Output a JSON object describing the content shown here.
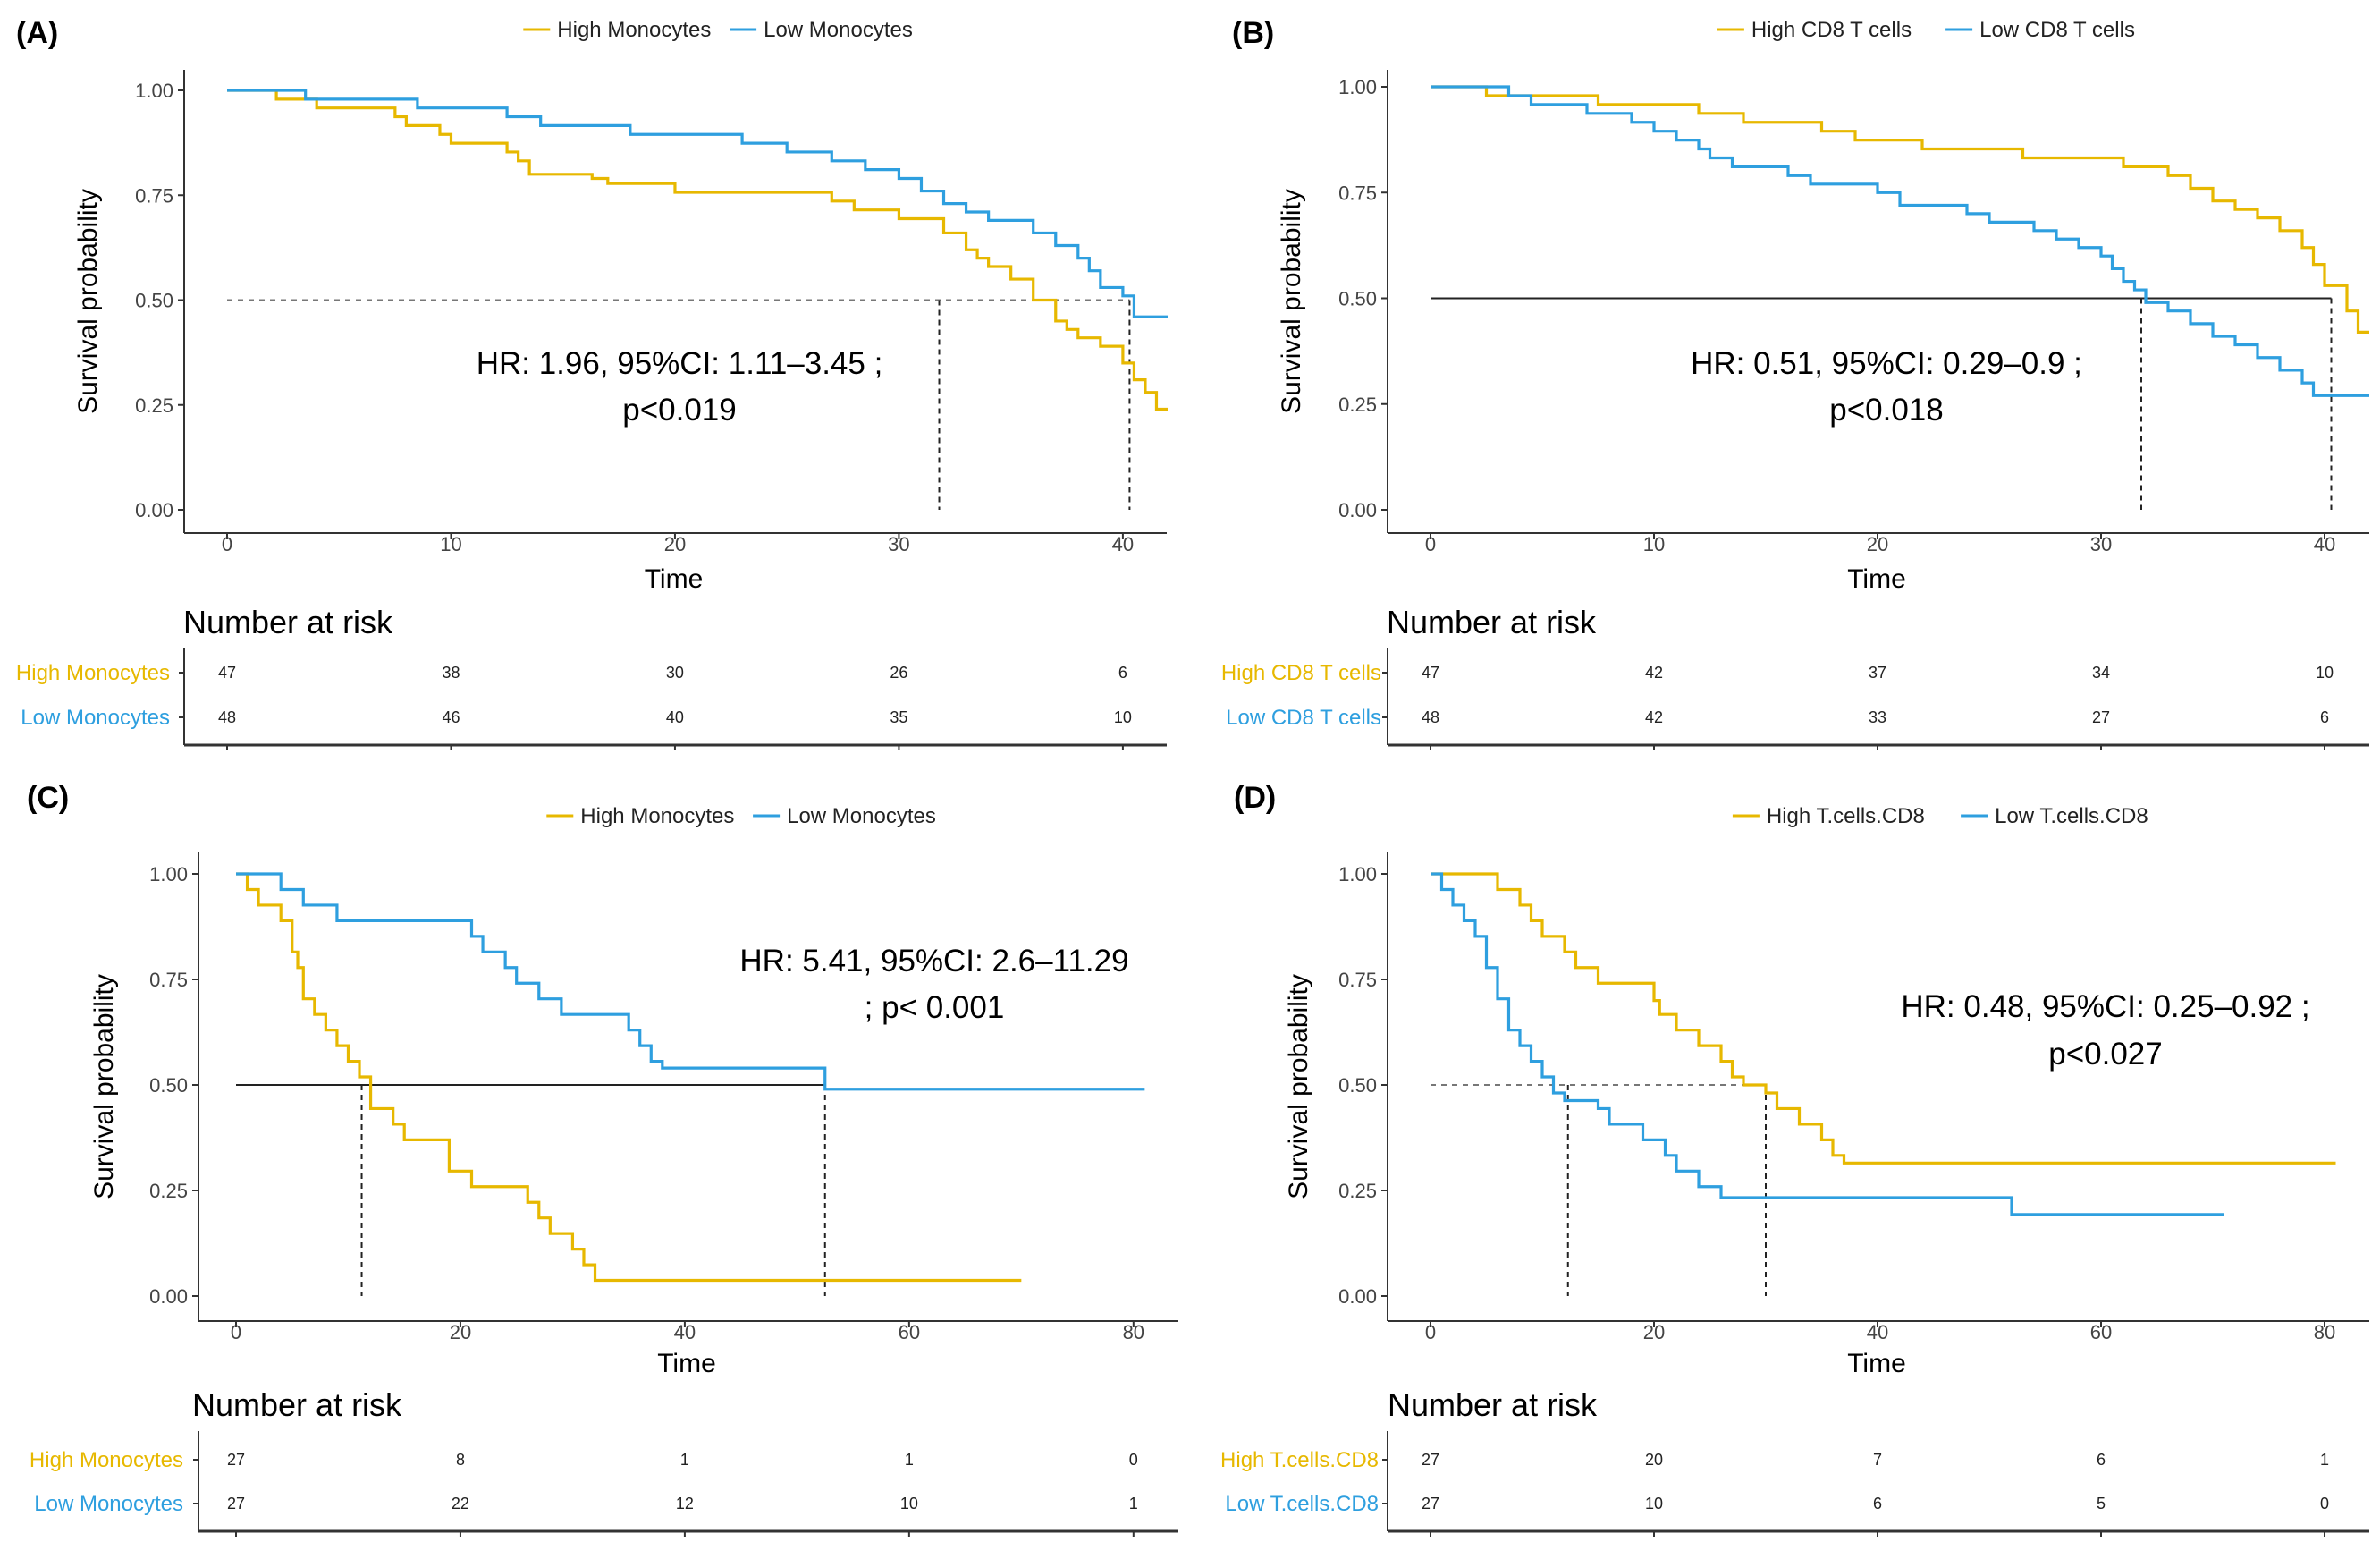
{
  "colors": {
    "high": "#E7B800",
    "low": "#2E9FDF",
    "axis": "#333333",
    "text": "#000000"
  },
  "chart_data": [
    {
      "type": "line",
      "panel": "(A)",
      "xlabel": "Time",
      "ylabel": "Survival probability",
      "xlim": [
        0,
        42
      ],
      "ylim": [
        0,
        1
      ],
      "x_ticks": [
        0,
        10,
        20,
        30,
        40
      ],
      "x_tick_labels": [
        "0",
        "10",
        "20",
        "30",
        "40"
      ],
      "y_ticks": [
        0,
        0.25,
        0.5,
        0.75,
        1
      ],
      "y_tick_labels": [
        "0.00",
        "0.25",
        "0.50",
        "0.75",
        "1.00"
      ],
      "legend": "top-center",
      "median_line_style": "dashed",
      "median_times": [
        31.8,
        40.3
      ],
      "hr_text": [
        "HR: 1.96, 95%CI: 1.11–3.45 ;",
        "p<0.019"
      ],
      "series": [
        {
          "name": "High Monocytes",
          "color": "#E7B800",
          "steps": [
            [
              0,
              1
            ],
            [
              2.2,
              0.979
            ],
            [
              4,
              0.958
            ],
            [
              7.5,
              0.937
            ],
            [
              8,
              0.916
            ],
            [
              9.5,
              0.895
            ],
            [
              10,
              0.874
            ],
            [
              12.5,
              0.853
            ],
            [
              13,
              0.832
            ],
            [
              13.5,
              0.8
            ],
            [
              16.3,
              0.79
            ],
            [
              17,
              0.778
            ],
            [
              20,
              0.757
            ],
            [
              27,
              0.736
            ],
            [
              28,
              0.715
            ],
            [
              30,
              0.694
            ],
            [
              32,
              0.66
            ],
            [
              33,
              0.62
            ],
            [
              33.5,
              0.6
            ],
            [
              34,
              0.58
            ],
            [
              35,
              0.55
            ],
            [
              36,
              0.5
            ],
            [
              37,
              0.45
            ],
            [
              37.5,
              0.43
            ],
            [
              38,
              0.41
            ],
            [
              39,
              0.39
            ],
            [
              40,
              0.35
            ],
            [
              40.5,
              0.31
            ],
            [
              41,
              0.28
            ],
            [
              41.5,
              0.24
            ]
          ],
          "end": 42
        },
        {
          "name": "Low Monocytes",
          "color": "#2E9FDF",
          "steps": [
            [
              0,
              1
            ],
            [
              3.5,
              0.979
            ],
            [
              8.5,
              0.958
            ],
            [
              12.5,
              0.937
            ],
            [
              14,
              0.916
            ],
            [
              18,
              0.895
            ],
            [
              23,
              0.874
            ],
            [
              25,
              0.853
            ],
            [
              27,
              0.832
            ],
            [
              28.5,
              0.811
            ],
            [
              30,
              0.79
            ],
            [
              31,
              0.76
            ],
            [
              32,
              0.73
            ],
            [
              33,
              0.71
            ],
            [
              34,
              0.69
            ],
            [
              36,
              0.66
            ],
            [
              37,
              0.63
            ],
            [
              38,
              0.6
            ],
            [
              38.5,
              0.57
            ],
            [
              39,
              0.53
            ],
            [
              40,
              0.51
            ],
            [
              40.5,
              0.46
            ]
          ],
          "end": 42
        }
      ],
      "risk_table": {
        "title": "Number at risk",
        "times": [
          0,
          10,
          20,
          30,
          40
        ],
        "rows": [
          {
            "label": "High Monocytes",
            "color": "#E7B800",
            "values": [
              "47",
              "38",
              "30",
              "26",
              "6"
            ]
          },
          {
            "label": "Low Monocytes",
            "color": "#2E9FDF",
            "values": [
              "48",
              "46",
              "40",
              "35",
              "10"
            ]
          }
        ]
      }
    },
    {
      "type": "line",
      "panel": "(B)",
      "xlabel": "Time",
      "ylabel": "Survival probability",
      "xlim": [
        0,
        42
      ],
      "ylim": [
        0,
        1
      ],
      "x_ticks": [
        0,
        10,
        20,
        30,
        40
      ],
      "x_tick_labels": [
        "0",
        "10",
        "20",
        "30",
        "40"
      ],
      "y_ticks": [
        0,
        0.25,
        0.5,
        0.75,
        1
      ],
      "y_tick_labels": [
        "0.00",
        "0.25",
        "0.50",
        "0.75",
        "1.00"
      ],
      "legend": "top-center",
      "median_line_style": "solid",
      "median_times": [
        31.8,
        40.3
      ],
      "hr_text": [
        "HR: 0.51, 95%CI: 0.29–0.9 ;",
        "p<0.018"
      ],
      "series": [
        {
          "name": "High CD8 T cells",
          "color": "#E7B800",
          "steps": [
            [
              0,
              1
            ],
            [
              2.5,
              0.979
            ],
            [
              7.5,
              0.958
            ],
            [
              12,
              0.937
            ],
            [
              14,
              0.916
            ],
            [
              17.5,
              0.895
            ],
            [
              19,
              0.874
            ],
            [
              22,
              0.853
            ],
            [
              26.5,
              0.832
            ],
            [
              31,
              0.811
            ],
            [
              33,
              0.79
            ],
            [
              34,
              0.76
            ],
            [
              35,
              0.73
            ],
            [
              36,
              0.71
            ],
            [
              37,
              0.69
            ],
            [
              38,
              0.66
            ],
            [
              39,
              0.62
            ],
            [
              39.5,
              0.58
            ],
            [
              40,
              0.53
            ],
            [
              41,
              0.47
            ],
            [
              41.5,
              0.42
            ]
          ],
          "end": 42
        },
        {
          "name": "Low CD8 T cells",
          "color": "#2E9FDF",
          "steps": [
            [
              0,
              1
            ],
            [
              3.5,
              0.979
            ],
            [
              4.5,
              0.958
            ],
            [
              7,
              0.937
            ],
            [
              9,
              0.916
            ],
            [
              10,
              0.895
            ],
            [
              11,
              0.874
            ],
            [
              12,
              0.853
            ],
            [
              12.5,
              0.832
            ],
            [
              13.5,
              0.811
            ],
            [
              16,
              0.79
            ],
            [
              17,
              0.77
            ],
            [
              20,
              0.75
            ],
            [
              21,
              0.72
            ],
            [
              24,
              0.7
            ],
            [
              25,
              0.68
            ],
            [
              27,
              0.66
            ],
            [
              28,
              0.64
            ],
            [
              29,
              0.62
            ],
            [
              30,
              0.6
            ],
            [
              30.5,
              0.57
            ],
            [
              31,
              0.54
            ],
            [
              31.5,
              0.52
            ],
            [
              32,
              0.49
            ],
            [
              33,
              0.47
            ],
            [
              34,
              0.44
            ],
            [
              35,
              0.41
            ],
            [
              36,
              0.39
            ],
            [
              37,
              0.36
            ],
            [
              38,
              0.33
            ],
            [
              39,
              0.3
            ],
            [
              39.5,
              0.27
            ]
          ],
          "end": 42
        }
      ],
      "risk_table": {
        "title": "Number at risk",
        "times": [
          0,
          10,
          20,
          30,
          40
        ],
        "rows": [
          {
            "label": "High CD8 T cells",
            "color": "#E7B800",
            "values": [
              "47",
              "42",
              "37",
              "34",
              "10"
            ]
          },
          {
            "label": "Low CD8 T cells",
            "color": "#2E9FDF",
            "values": [
              "48",
              "42",
              "33",
              "27",
              "6"
            ]
          }
        ]
      }
    },
    {
      "type": "line",
      "panel": "(C)",
      "xlabel": "Time",
      "ylabel": "Survival probability",
      "xlim": [
        0,
        84
      ],
      "ylim": [
        0,
        1
      ],
      "x_ticks": [
        0,
        20,
        40,
        60,
        80
      ],
      "x_tick_labels": [
        "0",
        "20",
        "40",
        "60",
        "80"
      ],
      "y_ticks": [
        0,
        0.25,
        0.5,
        0.75,
        1
      ],
      "y_tick_labels": [
        "0.00",
        "0.25",
        "0.50",
        "0.75",
        "1.00"
      ],
      "legend": "top-center",
      "median_line_style": "solid",
      "median_times": [
        11.2,
        52.5
      ],
      "hr_text": [
        "HR: 5.41, 95%CI: 2.6–11.29",
        "; p< 0.001"
      ],
      "series": [
        {
          "name": "High Monocytes",
          "color": "#E7B800",
          "steps": [
            [
              0,
              1
            ],
            [
              1,
              0.963
            ],
            [
              2,
              0.926
            ],
            [
              4,
              0.889
            ],
            [
              5,
              0.815
            ],
            [
              5.5,
              0.778
            ],
            [
              6,
              0.704
            ],
            [
              7,
              0.667
            ],
            [
              8,
              0.63
            ],
            [
              9,
              0.593
            ],
            [
              10,
              0.556
            ],
            [
              11,
              0.519
            ],
            [
              12,
              0.444
            ],
            [
              14,
              0.407
            ],
            [
              15,
              0.37
            ],
            [
              19,
              0.296
            ],
            [
              21,
              0.259
            ],
            [
              26,
              0.222
            ],
            [
              27,
              0.185
            ],
            [
              28,
              0.148
            ],
            [
              30,
              0.111
            ],
            [
              31,
              0.074
            ],
            [
              32,
              0.037
            ]
          ],
          "end": 70
        },
        {
          "name": "Low Monocytes",
          "color": "#2E9FDF",
          "steps": [
            [
              0,
              1
            ],
            [
              4,
              0.963
            ],
            [
              6,
              0.926
            ],
            [
              9,
              0.889
            ],
            [
              21,
              0.852
            ],
            [
              22,
              0.815
            ],
            [
              24,
              0.778
            ],
            [
              25,
              0.741
            ],
            [
              27,
              0.704
            ],
            [
              29,
              0.667
            ],
            [
              35,
              0.63
            ],
            [
              36,
              0.593
            ],
            [
              37,
              0.556
            ],
            [
              38,
              0.54
            ],
            [
              52.5,
              0.49
            ]
          ],
          "end": 81
        }
      ],
      "risk_table": {
        "title": "Number at risk",
        "times": [
          0,
          20,
          40,
          60,
          80
        ],
        "rows": [
          {
            "label": "High Monocytes",
            "color": "#E7B800",
            "values": [
              "27",
              "8",
              "1",
              "1",
              "0"
            ]
          },
          {
            "label": "Low Monocytes",
            "color": "#2E9FDF",
            "values": [
              "27",
              "22",
              "12",
              "10",
              "1"
            ]
          }
        ]
      }
    },
    {
      "type": "line",
      "panel": "(D)",
      "xlabel": "Time",
      "ylabel": "Survival probability",
      "xlim": [
        0,
        84
      ],
      "ylim": [
        0,
        1
      ],
      "x_ticks": [
        0,
        20,
        40,
        60,
        80
      ],
      "x_tick_labels": [
        "0",
        "20",
        "40",
        "60",
        "80"
      ],
      "y_ticks": [
        0,
        0.25,
        0.5,
        0.75,
        1
      ],
      "y_tick_labels": [
        "0.00",
        "0.25",
        "0.50",
        "0.75",
        "1.00"
      ],
      "legend": "top-center",
      "median_line_style": "dashed",
      "median_times": [
        12.3,
        30
      ],
      "hr_text": [
        "HR: 0.48, 95%CI: 0.25–0.92 ;",
        "p<0.027"
      ],
      "series": [
        {
          "name": "High T.cells.CD8",
          "color": "#E7B800",
          "steps": [
            [
              0,
              1
            ],
            [
              6,
              0.963
            ],
            [
              8,
              0.926
            ],
            [
              9,
              0.889
            ],
            [
              10,
              0.852
            ],
            [
              12,
              0.815
            ],
            [
              13,
              0.778
            ],
            [
              15,
              0.741
            ],
            [
              18,
              0.741
            ],
            [
              20,
              0.7
            ],
            [
              20.5,
              0.667
            ],
            [
              22,
              0.63
            ],
            [
              24,
              0.593
            ],
            [
              26,
              0.556
            ],
            [
              27,
              0.519
            ],
            [
              28,
              0.5
            ],
            [
              30,
              0.481
            ],
            [
              31,
              0.444
            ],
            [
              33,
              0.407
            ],
            [
              35,
              0.37
            ],
            [
              36,
              0.333
            ],
            [
              37,
              0.315
            ]
          ],
          "end": 81
        },
        {
          "name": "Low T.cells.CD8",
          "color": "#2E9FDF",
          "steps": [
            [
              0,
              1
            ],
            [
              1,
              0.963
            ],
            [
              2,
              0.926
            ],
            [
              3,
              0.889
            ],
            [
              4,
              0.852
            ],
            [
              5,
              0.778
            ],
            [
              6,
              0.704
            ],
            [
              7,
              0.63
            ],
            [
              8,
              0.593
            ],
            [
              9,
              0.556
            ],
            [
              10,
              0.519
            ],
            [
              11,
              0.481
            ],
            [
              12,
              0.463
            ],
            [
              15,
              0.444
            ],
            [
              16,
              0.407
            ],
            [
              19,
              0.37
            ],
            [
              21,
              0.333
            ],
            [
              22,
              0.296
            ],
            [
              24,
              0.259
            ],
            [
              26,
              0.233
            ],
            [
              52,
              0.193
            ]
          ],
          "end": 71
        }
      ],
      "risk_table": {
        "title": "Number at risk",
        "times": [
          0,
          20,
          40,
          60,
          80
        ],
        "rows": [
          {
            "label": "High T.cells.CD8",
            "color": "#E7B800",
            "values": [
              "27",
              "20",
              "7",
              "6",
              "1"
            ]
          },
          {
            "label": "Low T.cells.CD8",
            "color": "#2E9FDF",
            "values": [
              "27",
              "10",
              "6",
              "5",
              "0"
            ]
          }
        ]
      }
    }
  ]
}
